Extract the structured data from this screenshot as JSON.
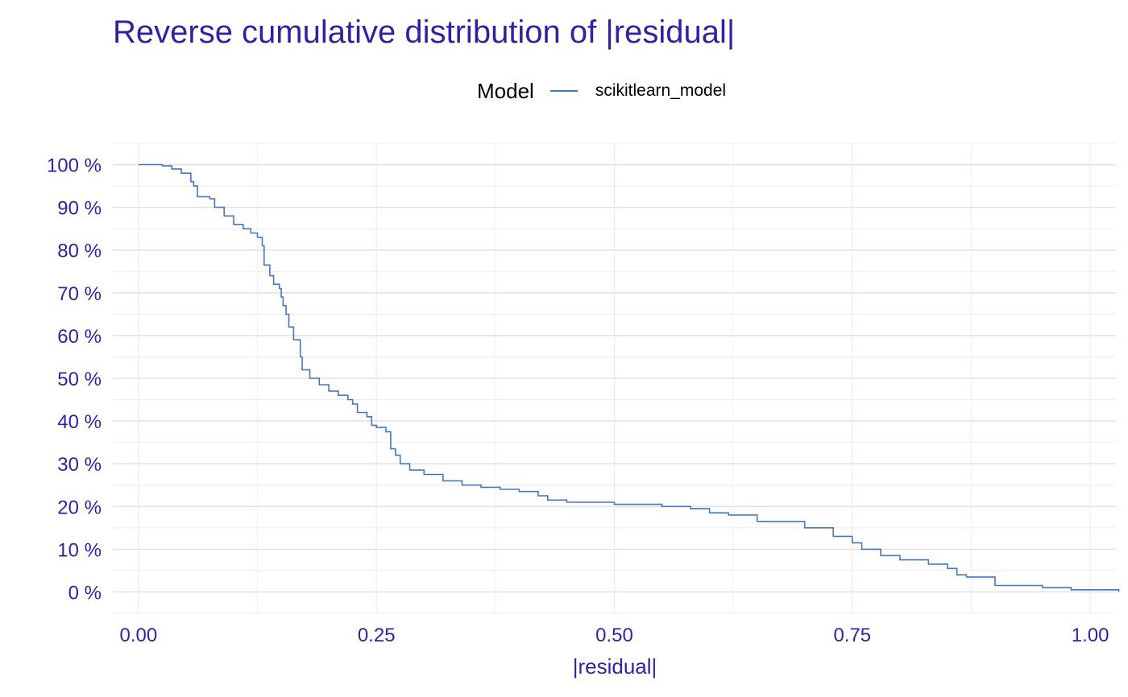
{
  "chart_data": {
    "type": "line",
    "title": "Reverse cumulative distribution of |residual|",
    "xlabel": "|residual|",
    "ylabel": "",
    "legend": {
      "title": "Model",
      "placement": "top-center"
    },
    "xlim": [
      -0.027,
      1.027
    ],
    "ylim": [
      -0.05,
      1.05
    ],
    "xticks": [
      0.0,
      0.25,
      0.5,
      0.75,
      1.0
    ],
    "xtick_labels": [
      "0.00",
      "0.25",
      "0.50",
      "0.75",
      "1.00"
    ],
    "yticks": [
      0,
      0.1,
      0.2,
      0.3,
      0.4,
      0.5,
      0.6,
      0.7,
      0.8,
      0.9,
      1.0
    ],
    "ytick_labels": [
      "0 %",
      "10 %",
      "20 %",
      "30 %",
      "40 %",
      "50 %",
      "60 %",
      "70 %",
      "80 %",
      "90 %",
      "100 %"
    ],
    "grid": true,
    "series": [
      {
        "name": "scikitlearn_model",
        "color": "#4378bf",
        "step": true,
        "x": [
          0.0,
          0.025,
          0.035,
          0.045,
          0.055,
          0.058,
          0.062,
          0.075,
          0.08,
          0.09,
          0.1,
          0.11,
          0.118,
          0.125,
          0.13,
          0.132,
          0.138,
          0.142,
          0.148,
          0.15,
          0.152,
          0.155,
          0.158,
          0.163,
          0.17,
          0.172,
          0.18,
          0.19,
          0.2,
          0.21,
          0.22,
          0.225,
          0.23,
          0.24,
          0.245,
          0.25,
          0.26,
          0.265,
          0.27,
          0.275,
          0.285,
          0.3,
          0.32,
          0.34,
          0.36,
          0.38,
          0.4,
          0.42,
          0.43,
          0.45,
          0.5,
          0.55,
          0.58,
          0.6,
          0.62,
          0.65,
          0.7,
          0.73,
          0.75,
          0.76,
          0.78,
          0.8,
          0.83,
          0.85,
          0.86,
          0.87,
          0.9,
          0.95,
          0.98,
          1.03
        ],
        "y": [
          1.0,
          0.997,
          0.99,
          0.98,
          0.96,
          0.95,
          0.925,
          0.92,
          0.9,
          0.88,
          0.86,
          0.85,
          0.84,
          0.83,
          0.81,
          0.765,
          0.74,
          0.72,
          0.71,
          0.69,
          0.67,
          0.65,
          0.62,
          0.59,
          0.55,
          0.52,
          0.5,
          0.485,
          0.47,
          0.46,
          0.45,
          0.44,
          0.42,
          0.41,
          0.39,
          0.385,
          0.375,
          0.335,
          0.32,
          0.3,
          0.285,
          0.275,
          0.26,
          0.25,
          0.245,
          0.24,
          0.235,
          0.225,
          0.215,
          0.21,
          0.205,
          0.2,
          0.195,
          0.185,
          0.18,
          0.165,
          0.15,
          0.13,
          0.115,
          0.1,
          0.085,
          0.075,
          0.065,
          0.055,
          0.04,
          0.035,
          0.015,
          0.01,
          0.005,
          0.0
        ]
      }
    ]
  }
}
